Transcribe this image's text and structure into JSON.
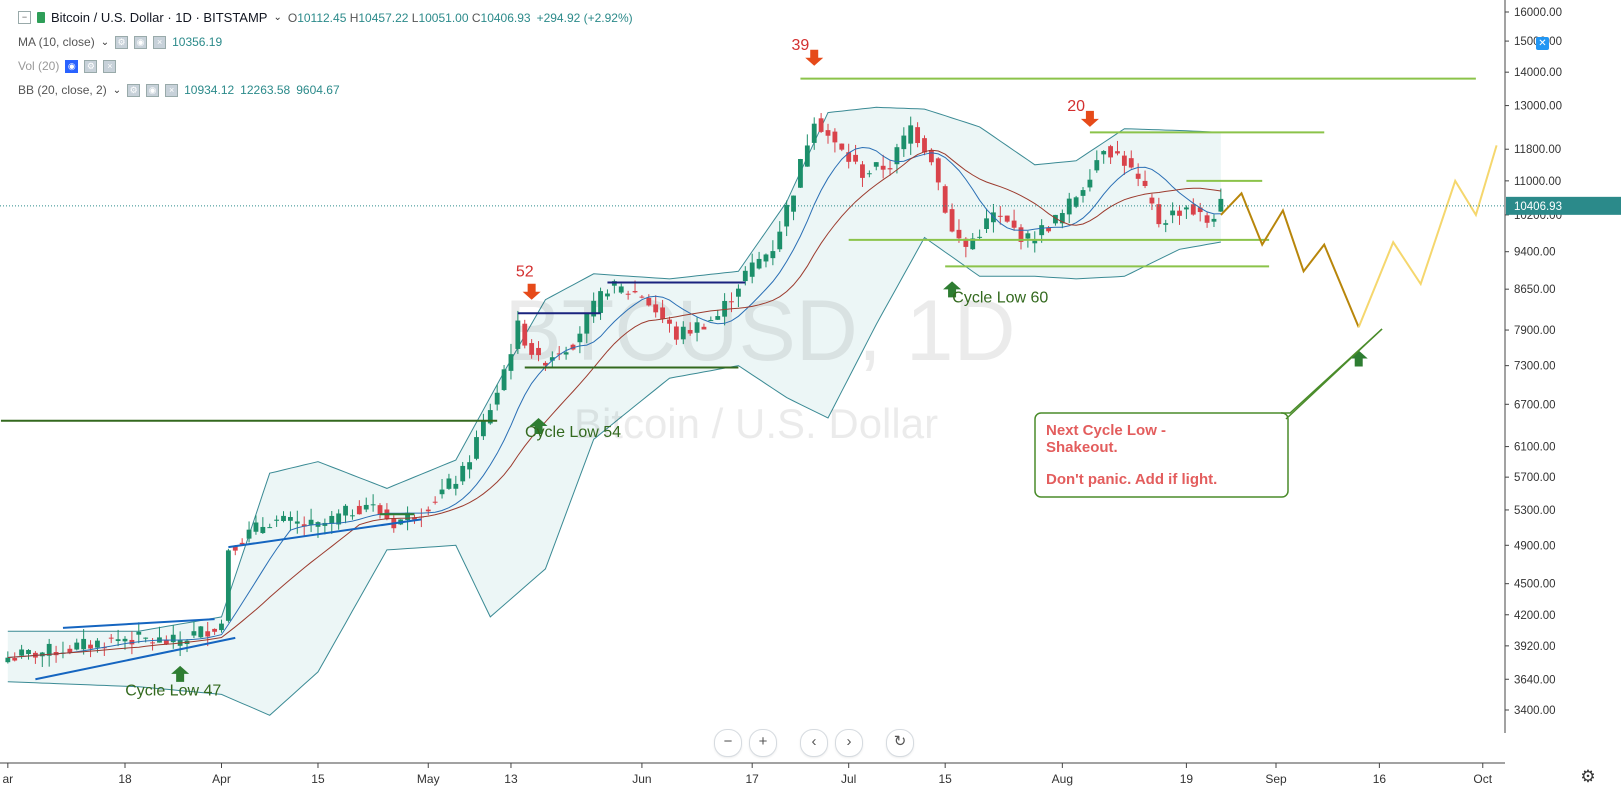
{
  "legend": {
    "symbol": "Bitcoin / U.S. Dollar · 1D · BITSTAMP",
    "ohlc": [
      {
        "k": "O",
        "v": "10112.45"
      },
      {
        "k": "H",
        "v": "10457.22"
      },
      {
        "k": "L",
        "v": "10051.00"
      },
      {
        "k": "C",
        "v": "10406.93"
      }
    ],
    "change": "+294.92 (+2.92%)",
    "ma_label": "MA (10, close)",
    "ma_value": "10356.19",
    "vol_label": "Vol (20)",
    "bb_label": "BB (20, close, 2)",
    "bb_values": [
      "10934.12",
      "12263.58",
      "9604.67"
    ]
  },
  "watermark": {
    "ticker": "BTCUSD, 1D",
    "name": "Bitcoin / U.S. Dollar"
  },
  "chart_data": {
    "type": "candlestick",
    "price_axis": {
      "scale": "log",
      "ticks": [
        3400,
        3640,
        3920,
        4200,
        4500,
        4900,
        5300,
        5700,
        6100,
        6700,
        7300,
        7900,
        8650,
        9400,
        10200,
        11000,
        11800,
        13000,
        14000,
        15000,
        16000
      ],
      "tick_labels": [
        "3400.00",
        "3640.00",
        "3920.00",
        "4200.00",
        "4500.00",
        "4900.00",
        "5300.00",
        "5700.00",
        "6100.00",
        "6700.00",
        "7300.00",
        "7900.00",
        "8650.00",
        "9400.00",
        "10200.00",
        "11000.00",
        "11800.00",
        "13000.00",
        "14000.00",
        "15000.00",
        "16000.00"
      ],
      "current_price_label": "10406.93",
      "current_price": 10406.93
    },
    "time_axis": {
      "labels": [
        {
          "label": "ar",
          "date": "2019-03-01"
        },
        {
          "label": "18",
          "date": "2019-03-18"
        },
        {
          "label": "Apr",
          "date": "2019-04-01"
        },
        {
          "label": "15",
          "date": "2019-04-15"
        },
        {
          "label": "May",
          "date": "2019-05-01"
        },
        {
          "label": "13",
          "date": "2019-05-13"
        },
        {
          "label": "Jun",
          "date": "2019-06-01"
        },
        {
          "label": "17",
          "date": "2019-06-17"
        },
        {
          "label": "Jul",
          "date": "2019-07-01"
        },
        {
          "label": "15",
          "date": "2019-07-15"
        },
        {
          "label": "Aug",
          "date": "2019-08-01"
        },
        {
          "label": "19",
          "date": "2019-08-19"
        },
        {
          "label": "Sep",
          "date": "2019-09-01"
        },
        {
          "label": "16",
          "date": "2019-09-16"
        },
        {
          "label": "Oct",
          "date": "2019-10-01"
        }
      ]
    },
    "price_anchors": [
      {
        "date": "2019-03-01",
        "close": 3820
      },
      {
        "date": "2019-03-10",
        "close": 3900
      },
      {
        "date": "2019-03-18",
        "close": 3990
      },
      {
        "date": "2019-03-25",
        "close": 3950
      },
      {
        "date": "2019-04-01",
        "close": 4120
      },
      {
        "date": "2019-04-02",
        "close": 4880
      },
      {
        "date": "2019-04-08",
        "close": 5180
      },
      {
        "date": "2019-04-15",
        "close": 5100
      },
      {
        "date": "2019-04-22",
        "close": 5380
      },
      {
        "date": "2019-04-26",
        "close": 5150
      },
      {
        "date": "2019-04-30",
        "close": 5300
      },
      {
        "date": "2019-05-06",
        "close": 5750
      },
      {
        "date": "2019-05-11",
        "close": 6900
      },
      {
        "date": "2019-05-14",
        "close": 7950
      },
      {
        "date": "2019-05-17",
        "close": 7350
      },
      {
        "date": "2019-05-22",
        "close": 7700
      },
      {
        "date": "2019-05-27",
        "close": 8700
      },
      {
        "date": "2019-06-01",
        "close": 8550
      },
      {
        "date": "2019-06-06",
        "close": 7800
      },
      {
        "date": "2019-06-12",
        "close": 8150
      },
      {
        "date": "2019-06-16",
        "close": 8950
      },
      {
        "date": "2019-06-20",
        "close": 9500
      },
      {
        "date": "2019-06-23",
        "close": 10800
      },
      {
        "date": "2019-06-26",
        "close": 12700
      },
      {
        "date": "2019-06-29",
        "close": 11900
      },
      {
        "date": "2019-07-03",
        "close": 11200
      },
      {
        "date": "2019-07-07",
        "close": 11400
      },
      {
        "date": "2019-07-10",
        "close": 12400
      },
      {
        "date": "2019-07-13",
        "close": 11600
      },
      {
        "date": "2019-07-16",
        "close": 9800
      },
      {
        "date": "2019-07-18",
        "close": 9500
      },
      {
        "date": "2019-07-22",
        "close": 10200
      },
      {
        "date": "2019-07-27",
        "close": 9650
      },
      {
        "date": "2019-08-01",
        "close": 10200
      },
      {
        "date": "2019-08-04",
        "close": 10900
      },
      {
        "date": "2019-08-07",
        "close": 11900
      },
      {
        "date": "2019-08-10",
        "close": 11500
      },
      {
        "date": "2019-08-13",
        "close": 10700
      },
      {
        "date": "2019-08-15",
        "close": 10050
      },
      {
        "date": "2019-08-19",
        "close": 10400
      },
      {
        "date": "2019-08-22",
        "close": 10050
      },
      {
        "date": "2019-08-24",
        "close": 10406.93
      }
    ],
    "bollinger_bands": {
      "upper": [
        {
          "date": "2019-03-01",
          "v": 4050
        },
        {
          "date": "2019-03-20",
          "v": 4050
        },
        {
          "date": "2019-04-01",
          "v": 4180
        },
        {
          "date": "2019-04-08",
          "v": 5750
        },
        {
          "date": "2019-04-15",
          "v": 5900
        },
        {
          "date": "2019-04-25",
          "v": 5560
        },
        {
          "date": "2019-05-05",
          "v": 5920
        },
        {
          "date": "2019-05-12",
          "v": 7200
        },
        {
          "date": "2019-05-18",
          "v": 8450
        },
        {
          "date": "2019-05-25",
          "v": 8950
        },
        {
          "date": "2019-06-05",
          "v": 8850
        },
        {
          "date": "2019-06-15",
          "v": 9000
        },
        {
          "date": "2019-06-22",
          "v": 10500
        },
        {
          "date": "2019-06-28",
          "v": 12800
        },
        {
          "date": "2019-07-05",
          "v": 12950
        },
        {
          "date": "2019-07-12",
          "v": 12900
        },
        {
          "date": "2019-07-20",
          "v": 12400
        },
        {
          "date": "2019-07-28",
          "v": 11400
        },
        {
          "date": "2019-08-03",
          "v": 11500
        },
        {
          "date": "2019-08-10",
          "v": 12350
        },
        {
          "date": "2019-08-18",
          "v": 12300
        },
        {
          "date": "2019-08-24",
          "v": 12250
        }
      ],
      "lower": [
        {
          "date": "2019-03-01",
          "v": 3620
        },
        {
          "date": "2019-03-20",
          "v": 3580
        },
        {
          "date": "2019-04-01",
          "v": 3520
        },
        {
          "date": "2019-04-08",
          "v": 3360
        },
        {
          "date": "2019-04-15",
          "v": 3700
        },
        {
          "date": "2019-04-25",
          "v": 4850
        },
        {
          "date": "2019-05-05",
          "v": 4900
        },
        {
          "date": "2019-05-10",
          "v": 4180
        },
        {
          "date": "2019-05-18",
          "v": 4650
        },
        {
          "date": "2019-05-25",
          "v": 6200
        },
        {
          "date": "2019-06-05",
          "v": 7100
        },
        {
          "date": "2019-06-15",
          "v": 7300
        },
        {
          "date": "2019-06-22",
          "v": 6800
        },
        {
          "date": "2019-06-28",
          "v": 6500
        },
        {
          "date": "2019-07-05",
          "v": 8000
        },
        {
          "date": "2019-07-12",
          "v": 9700
        },
        {
          "date": "2019-07-20",
          "v": 8900
        },
        {
          "date": "2019-07-28",
          "v": 8900
        },
        {
          "date": "2019-08-03",
          "v": 8850
        },
        {
          "date": "2019-08-10",
          "v": 8900
        },
        {
          "date": "2019-08-18",
          "v": 9450
        },
        {
          "date": "2019-08-24",
          "v": 9604.67
        }
      ]
    },
    "horizontal_levels": [
      {
        "color": "#8bc34a",
        "price": 13800,
        "from": "2019-06-24",
        "to": "2019-09-30"
      },
      {
        "color": "#8bc34a",
        "price": 12250,
        "from": "2019-08-05",
        "to": "2019-09-08"
      },
      {
        "color": "#8bc34a",
        "price": 11000,
        "from": "2019-08-19",
        "to": "2019-08-30"
      },
      {
        "color": "#8bc34a",
        "price": 9650,
        "from": "2019-07-01",
        "to": "2019-08-31"
      },
      {
        "color": "#8bc34a",
        "price": 9100,
        "from": "2019-07-15",
        "to": "2019-08-31"
      },
      {
        "color": "#33691e",
        "price": 7270,
        "from": "2019-05-15",
        "to": "2019-06-15"
      },
      {
        "color": "#33691e",
        "price": 6460,
        "from": "2019-02-28",
        "to": "2019-05-11"
      },
      {
        "color": "#1a237e",
        "price": 8780,
        "from": "2019-05-27",
        "to": "2019-06-16"
      },
      {
        "color": "#1a237e",
        "price": 8200,
        "from": "2019-05-14",
        "to": "2019-05-26"
      }
    ],
    "trendlines": [
      {
        "color": "#1565c0",
        "from": {
          "date": "2019-03-09",
          "p": 4080
        },
        "to": {
          "date": "2019-03-31",
          "p": 4160
        }
      },
      {
        "color": "#1565c0",
        "from": {
          "date": "2019-03-05",
          "p": 3640
        },
        "to": {
          "date": "2019-04-03",
          "p": 3990
        }
      },
      {
        "color": "#1565c0",
        "from": {
          "date": "2019-04-02",
          "p": 4880
        },
        "to": {
          "date": "2019-04-30",
          "p": 5190
        }
      },
      {
        "color": "#2e7d32",
        "from": {
          "date": "2019-04-24",
          "p": 5250
        },
        "to": {
          "date": "2019-04-29",
          "p": 5250
        }
      }
    ],
    "projection": [
      {
        "color": "#b8860b",
        "points": [
          {
            "date": "2019-08-24",
            "p": 10200
          },
          {
            "date": "2019-08-27",
            "p": 10700
          },
          {
            "date": "2019-08-30",
            "p": 9550
          },
          {
            "date": "2019-09-02",
            "p": 10300
          },
          {
            "date": "2019-09-05",
            "p": 9000
          },
          {
            "date": "2019-09-08",
            "p": 9550
          },
          {
            "date": "2019-09-13",
            "p": 7950
          }
        ]
      },
      {
        "color": "#f5d76e",
        "points": [
          {
            "date": "2019-09-13",
            "p": 7950
          },
          {
            "date": "2019-09-18",
            "p": 9600
          },
          {
            "date": "2019-09-22",
            "p": 8750
          },
          {
            "date": "2019-09-27",
            "p": 11000
          },
          {
            "date": "2019-09-30",
            "p": 10200
          },
          {
            "date": "2019-10-03",
            "p": 11900
          }
        ]
      }
    ],
    "annotations": [
      {
        "text": "52",
        "date": "2019-05-15",
        "p": 8900,
        "color": "#d32f2f"
      },
      {
        "text": "39",
        "date": "2019-06-24",
        "p": 14700,
        "color": "#d32f2f"
      },
      {
        "text": "20",
        "date": "2019-08-03",
        "p": 12850,
        "color": "#d32f2f"
      },
      {
        "text": "Cycle Low 47",
        "date": "2019-03-25",
        "p": 3510,
        "color": "#33691e"
      },
      {
        "text": "Cycle Low 54",
        "date": "2019-05-22",
        "p": 6230,
        "color": "#33691e"
      },
      {
        "text": "Cycle Low 60",
        "date": "2019-07-23",
        "p": 8400,
        "color": "#33691e"
      }
    ],
    "arrows": [
      {
        "dir": "down",
        "date": "2019-05-16",
        "p": 8450,
        "color": "#e64a19"
      },
      {
        "dir": "down",
        "date": "2019-06-26",
        "p": 14200,
        "color": "#e64a19"
      },
      {
        "dir": "down",
        "date": "2019-08-05",
        "p": 12400,
        "color": "#e64a19"
      },
      {
        "dir": "up",
        "date": "2019-03-26",
        "p": 3750,
        "color": "#2e7d32"
      },
      {
        "dir": "up",
        "date": "2019-05-17",
        "p": 6500,
        "color": "#2e7d32"
      },
      {
        "dir": "up",
        "date": "2019-07-16",
        "p": 8800,
        "color": "#2e7d32"
      },
      {
        "dir": "up",
        "date": "2019-09-13",
        "p": 7550,
        "color": "#2e7d32"
      }
    ],
    "callout": {
      "line1": "Next Cycle Low -",
      "line2": "Shakeout.",
      "line3": "Don't panic.  Add if light.",
      "text_color": "#e35d5d",
      "border_color": "#4a8c2a"
    }
  },
  "nav_buttons": [
    {
      "name": "zoom-out-button",
      "glyph": "−"
    },
    {
      "name": "zoom-in-button",
      "glyph": "+"
    },
    {
      "name": "scroll-left-button",
      "glyph": "‹"
    },
    {
      "name": "scroll-right-button",
      "glyph": "›"
    },
    {
      "name": "reset-button",
      "glyph": "↻"
    }
  ]
}
